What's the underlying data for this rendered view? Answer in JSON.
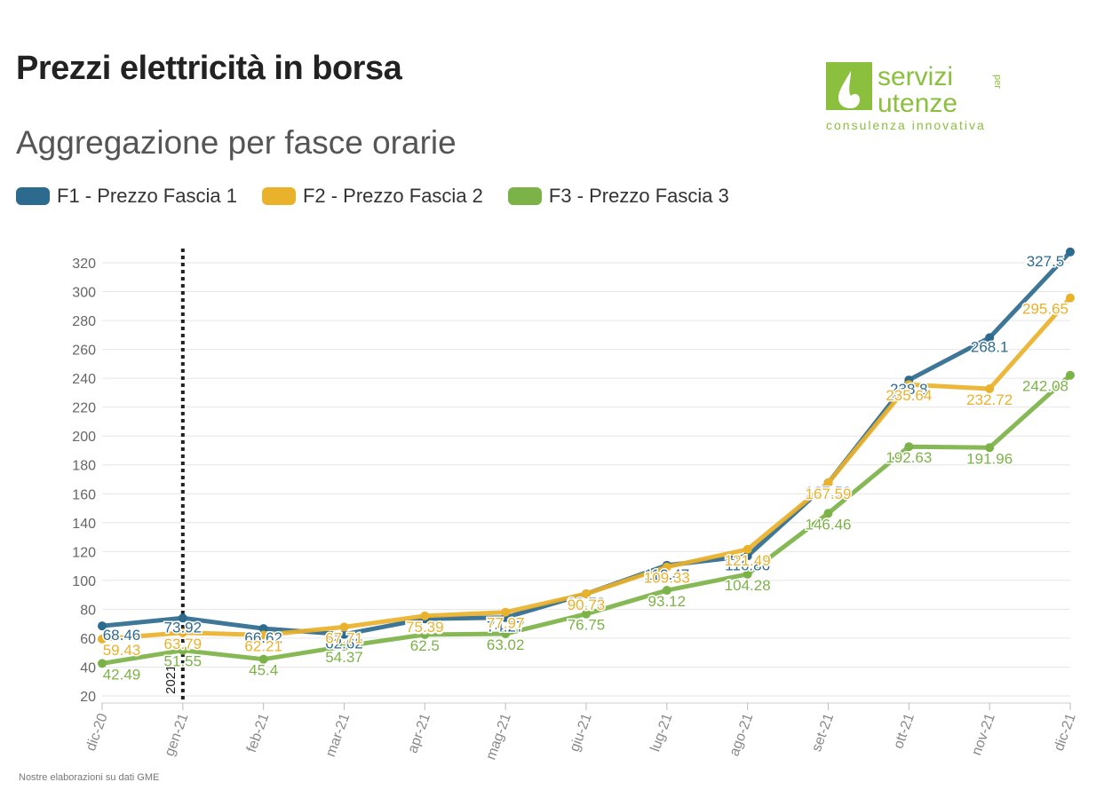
{
  "header": {
    "title": "Prezzi elettricità in borsa",
    "subtitle": "Aggregazione per fasce orarie"
  },
  "logo": {
    "line1": "servizi",
    "line1_small": "per",
    "line2": "utenze",
    "tagline": "consulenza innovativa",
    "color": "#8bbf3e"
  },
  "source_note": "Nostre elaborazioni su dati GME",
  "chart_data": {
    "type": "line",
    "title": "Prezzi elettricità in borsa",
    "subtitle": "Aggregazione per fasce orarie",
    "categories": [
      "dic-20",
      "gen-21",
      "feb-21",
      "mar-21",
      "apr-21",
      "mag-21",
      "giu-21",
      "lug-21",
      "ago-21",
      "set-21",
      "ott-21",
      "nov-21",
      "dic-21"
    ],
    "series": [
      {
        "name": "F1 - Prezzo Fascia 1",
        "color": "#2c6a8e",
        "values": [
          68.46,
          73.92,
          66.62,
          62.62,
          73.39,
          74.27,
          90.73,
          110.47,
          116.86,
          167.59,
          238.8,
          268.1,
          327.5
        ]
      },
      {
        "name": "F2 - Prezzo Fascia 2",
        "color": "#eab22a",
        "values": [
          59.43,
          63.79,
          62.21,
          67.71,
          75.39,
          77.97,
          90.73,
          109.33,
          121.49,
          167.59,
          235.64,
          232.72,
          295.65
        ]
      },
      {
        "name": "F3 - Prezzo Fascia 3",
        "color": "#7cb348",
        "values": [
          42.49,
          51.55,
          45.4,
          54.37,
          62.5,
          63.02,
          76.75,
          93.12,
          104.28,
          146.46,
          192.63,
          191.96,
          242.08
        ]
      }
    ],
    "ylim": [
      15,
      330
    ],
    "yticks": [
      20,
      40,
      60,
      80,
      100,
      120,
      140,
      160,
      180,
      200,
      220,
      240,
      260,
      280,
      300,
      320
    ],
    "grid": true,
    "legend_position": "top-left",
    "annotation": {
      "label": "2021",
      "at_category": "gen-21",
      "style": "dotted vertical line"
    }
  }
}
